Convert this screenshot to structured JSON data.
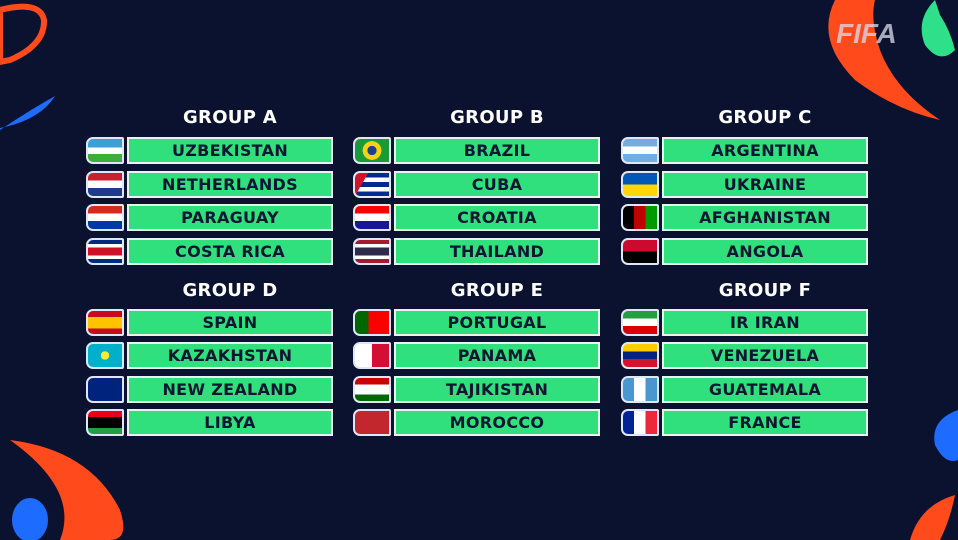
{
  "brand": {
    "logo_text": "FIFA"
  },
  "colors": {
    "background": "#0a1230",
    "team_box": "#2fe07c",
    "team_text": "#0c1633",
    "accent_orange": "#ff4a1c",
    "accent_blue": "#1e6bff",
    "accent_green": "#2ee08a"
  },
  "groups": [
    {
      "title": "GROUP A",
      "teams": [
        {
          "name": "UZBEKISTAN",
          "flag": "uzbekistan-flag"
        },
        {
          "name": "NETHERLANDS",
          "flag": "netherlands-flag"
        },
        {
          "name": "PARAGUAY",
          "flag": "paraguay-flag"
        },
        {
          "name": "COSTA RICA",
          "flag": "costa-rica-flag"
        }
      ]
    },
    {
      "title": "GROUP B",
      "teams": [
        {
          "name": "BRAZIL",
          "flag": "brazil-flag"
        },
        {
          "name": "CUBA",
          "flag": "cuba-flag"
        },
        {
          "name": "CROATIA",
          "flag": "croatia-flag"
        },
        {
          "name": "THAILAND",
          "flag": "thailand-flag"
        }
      ]
    },
    {
      "title": "GROUP C",
      "teams": [
        {
          "name": "ARGENTINA",
          "flag": "argentina-flag"
        },
        {
          "name": "UKRAINE",
          "flag": "ukraine-flag"
        },
        {
          "name": "AFGHANISTAN",
          "flag": "afghanistan-flag"
        },
        {
          "name": "ANGOLA",
          "flag": "angola-flag"
        }
      ]
    },
    {
      "title": "GROUP D",
      "teams": [
        {
          "name": "SPAIN",
          "flag": "spain-flag"
        },
        {
          "name": "KAZAKHSTAN",
          "flag": "kazakhstan-flag"
        },
        {
          "name": "NEW ZEALAND",
          "flag": "new-zealand-flag"
        },
        {
          "name": "LIBYA",
          "flag": "libya-flag"
        }
      ]
    },
    {
      "title": "GROUP E",
      "teams": [
        {
          "name": "PORTUGAL",
          "flag": "portugal-flag"
        },
        {
          "name": "PANAMA",
          "flag": "panama-flag"
        },
        {
          "name": "TAJIKISTAN",
          "flag": "tajikistan-flag"
        },
        {
          "name": "MOROCCO",
          "flag": "morocco-flag"
        }
      ]
    },
    {
      "title": "GROUP F",
      "teams": [
        {
          "name": "IR IRAN",
          "flag": "iran-flag"
        },
        {
          "name": "VENEZUELA",
          "flag": "venezuela-flag"
        },
        {
          "name": "GUATEMALA",
          "flag": "guatemala-flag"
        },
        {
          "name": "FRANCE",
          "flag": "france-flag"
        }
      ]
    }
  ]
}
